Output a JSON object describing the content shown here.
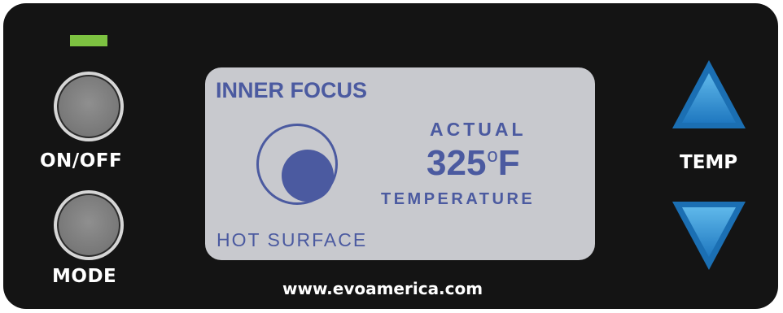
{
  "panel": {
    "power_label": "ON/OFF",
    "mode_label": "MODE",
    "temp_label": "TEMP",
    "website": "www.evoamerica.com"
  },
  "display": {
    "title": "INNER FOCUS",
    "status_label": "HOT SURFACE",
    "actual_label": "ACTUAL",
    "temperature_value": "325",
    "temperature_unit": "F",
    "temperature_label": "TEMPERATURE"
  },
  "colors": {
    "panel_background": "#141414",
    "lcd_background": "#c8c9ce",
    "lcd_text": "#4b5aa0",
    "led": "#7dc241",
    "arrow": "#2f8fd0"
  },
  "icons": {
    "power_led": "status-led",
    "temp_up": "triangle-up-icon",
    "temp_down": "triangle-down-icon",
    "focus_ring": "target-ring-icon"
  }
}
